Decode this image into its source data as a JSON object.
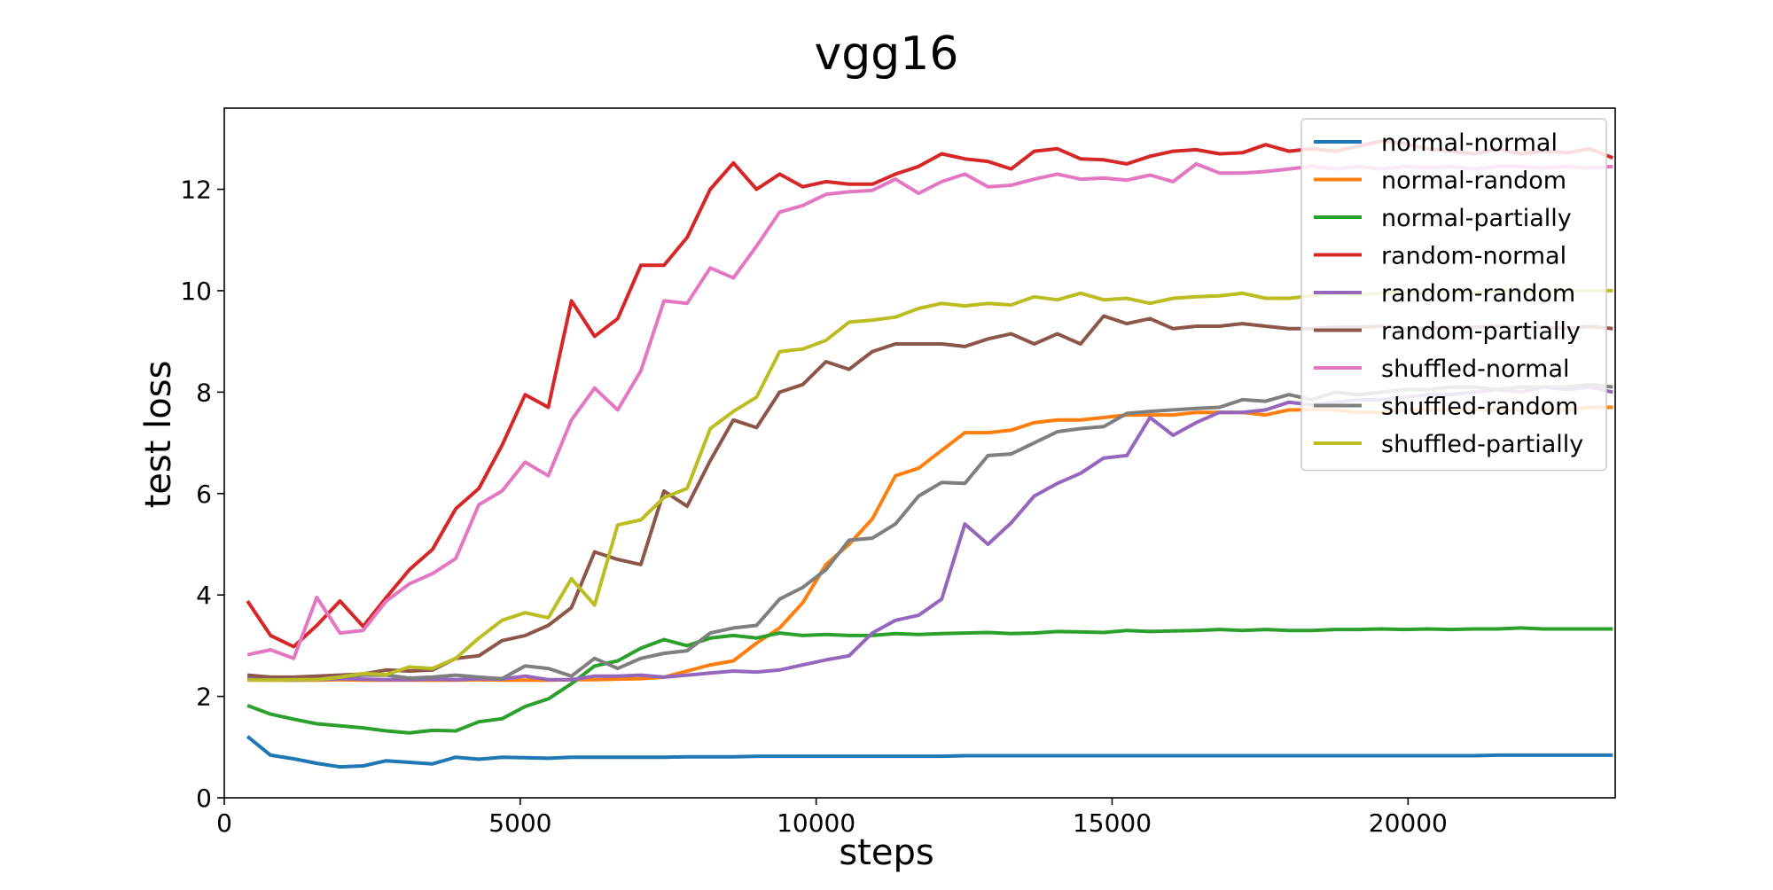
{
  "chart_data": {
    "type": "line",
    "title": "vgg16",
    "xlabel": "steps",
    "ylabel": "test loss",
    "xlim": [
      0,
      23500
    ],
    "ylim": [
      0,
      13.6
    ],
    "xticks": [
      0,
      5000,
      10000,
      15000,
      20000
    ],
    "xtick_labels": [
      "0",
      "5000",
      "10000",
      "15000",
      "20000"
    ],
    "yticks": [
      0,
      2,
      4,
      6,
      8,
      10,
      12
    ],
    "ytick_labels": [
      "0",
      "2",
      "4",
      "6",
      "8",
      "10",
      "12"
    ],
    "grid": false,
    "legend_position": "top-right",
    "colors": {
      "normal-normal": "#1f77b4",
      "normal-random": "#ff7f0e",
      "normal-partially": "#2ca02c",
      "random-normal": "#d62728",
      "random-random": "#9467bd",
      "random-partially": "#8c564b",
      "shuffled-normal": "#e377c2",
      "shuffled-random": "#7f7f7f",
      "shuffled-partially": "#bcbd22"
    },
    "x": [
      391,
      782,
      1173,
      1564,
      1955,
      2346,
      2737,
      3128,
      3519,
      3910,
      4301,
      4692,
      5083,
      5474,
      5865,
      6256,
      6647,
      7038,
      7429,
      7820,
      8211,
      8602,
      8993,
      9384,
      9775,
      10166,
      10557,
      10948,
      11339,
      11730,
      12121,
      12512,
      12903,
      13294,
      13685,
      14076,
      14467,
      14858,
      15249,
      15640,
      16031,
      16422,
      16813,
      17204,
      17595,
      17986,
      18377,
      18768,
      19159,
      19550,
      19941,
      20332,
      20723,
      21114,
      21505,
      21896,
      22287,
      22678,
      23069,
      23460
    ],
    "series": [
      {
        "name": "normal-normal",
        "values": [
          1.21,
          0.84,
          0.77,
          0.68,
          0.61,
          0.63,
          0.73,
          0.7,
          0.67,
          0.8,
          0.76,
          0.8,
          0.79,
          0.78,
          0.8,
          0.8,
          0.8,
          0.8,
          0.8,
          0.81,
          0.81,
          0.81,
          0.82,
          0.82,
          0.82,
          0.82,
          0.82,
          0.82,
          0.82,
          0.82,
          0.82,
          0.83,
          0.83,
          0.83,
          0.83,
          0.83,
          0.83,
          0.83,
          0.83,
          0.83,
          0.83,
          0.83,
          0.83,
          0.83,
          0.83,
          0.83,
          0.83,
          0.83,
          0.83,
          0.83,
          0.83,
          0.83,
          0.83,
          0.83,
          0.84,
          0.84,
          0.84,
          0.84,
          0.84,
          0.84
        ]
      },
      {
        "name": "normal-random",
        "values": [
          2.33,
          2.32,
          2.32,
          2.32,
          2.33,
          2.32,
          2.32,
          2.32,
          2.32,
          2.32,
          2.33,
          2.32,
          2.32,
          2.32,
          2.33,
          2.33,
          2.34,
          2.35,
          2.38,
          2.5,
          2.62,
          2.7,
          3.05,
          3.35,
          3.85,
          4.6,
          5.0,
          5.5,
          6.35,
          6.5,
          6.85,
          7.2,
          7.2,
          7.25,
          7.4,
          7.45,
          7.45,
          7.5,
          7.55,
          7.55,
          7.55,
          7.6,
          7.6,
          7.6,
          7.55,
          7.65,
          7.65,
          7.65,
          7.6,
          7.6,
          7.65,
          7.65,
          7.65,
          7.65,
          7.65,
          7.65,
          7.65,
          7.65,
          7.7,
          7.7
        ]
      },
      {
        "name": "normal-partially",
        "values": [
          1.82,
          1.65,
          1.55,
          1.46,
          1.42,
          1.38,
          1.32,
          1.28,
          1.33,
          1.32,
          1.5,
          1.56,
          1.8,
          1.95,
          2.25,
          2.6,
          2.7,
          2.95,
          3.12,
          3.0,
          3.15,
          3.2,
          3.15,
          3.25,
          3.2,
          3.22,
          3.2,
          3.2,
          3.24,
          3.22,
          3.24,
          3.25,
          3.26,
          3.24,
          3.25,
          3.28,
          3.27,
          3.26,
          3.3,
          3.28,
          3.29,
          3.3,
          3.32,
          3.3,
          3.32,
          3.3,
          3.3,
          3.32,
          3.32,
          3.33,
          3.32,
          3.33,
          3.32,
          3.33,
          3.33,
          3.35,
          3.33,
          3.33,
          3.33,
          3.33
        ]
      },
      {
        "name": "random-normal",
        "values": [
          3.88,
          3.2,
          2.98,
          3.4,
          3.88,
          3.38,
          3.95,
          4.5,
          4.9,
          5.7,
          6.1,
          6.95,
          7.95,
          7.7,
          9.8,
          9.1,
          9.45,
          10.5,
          10.5,
          11.05,
          12.0,
          12.52,
          12.0,
          12.3,
          12.05,
          12.15,
          12.1,
          12.1,
          12.3,
          12.45,
          12.7,
          12.6,
          12.55,
          12.4,
          12.75,
          12.8,
          12.6,
          12.58,
          12.5,
          12.65,
          12.75,
          12.78,
          12.7,
          12.72,
          12.88,
          12.75,
          12.8,
          12.75,
          12.85,
          12.95,
          12.9,
          12.8,
          12.75,
          12.7,
          12.8,
          12.7,
          12.75,
          12.72,
          12.8,
          12.62
        ]
      },
      {
        "name": "random-random",
        "values": [
          2.35,
          2.34,
          2.33,
          2.33,
          2.35,
          2.34,
          2.33,
          2.33,
          2.34,
          2.33,
          2.35,
          2.34,
          2.4,
          2.33,
          2.33,
          2.4,
          2.4,
          2.42,
          2.38,
          2.42,
          2.46,
          2.5,
          2.48,
          2.52,
          2.62,
          2.72,
          2.8,
          3.25,
          3.5,
          3.6,
          3.92,
          5.4,
          5.0,
          5.42,
          5.95,
          6.2,
          6.4,
          6.7,
          6.75,
          7.5,
          7.15,
          7.4,
          7.6,
          7.6,
          7.65,
          7.8,
          7.75,
          7.8,
          7.85,
          7.85,
          7.9,
          7.95,
          7.95,
          8.0,
          8.05,
          8.0,
          8.1,
          8.05,
          8.1,
          8.0
        ]
      },
      {
        "name": "random-partially",
        "values": [
          2.42,
          2.38,
          2.38,
          2.4,
          2.42,
          2.44,
          2.52,
          2.5,
          2.52,
          2.75,
          2.8,
          3.1,
          3.2,
          3.4,
          3.75,
          4.85,
          4.7,
          4.6,
          6.05,
          5.75,
          6.65,
          7.45,
          7.3,
          8.0,
          8.15,
          8.6,
          8.45,
          8.8,
          8.95,
          8.95,
          8.95,
          8.9,
          9.05,
          9.15,
          8.95,
          9.15,
          8.95,
          9.5,
          9.35,
          9.45,
          9.25,
          9.3,
          9.3,
          9.35,
          9.3,
          9.25,
          9.25,
          9.28,
          9.28,
          9.3,
          9.25,
          9.25,
          9.28,
          9.28,
          9.3,
          9.28,
          9.28,
          9.25,
          9.3,
          9.25
        ]
      },
      {
        "name": "shuffled-normal",
        "values": [
          2.82,
          2.92,
          2.75,
          3.95,
          3.25,
          3.3,
          3.88,
          4.22,
          4.42,
          4.72,
          5.78,
          6.05,
          6.62,
          6.35,
          7.45,
          8.08,
          7.65,
          8.42,
          9.8,
          9.75,
          10.45,
          10.25,
          10.88,
          11.55,
          11.68,
          11.9,
          11.95,
          11.98,
          12.2,
          11.92,
          12.15,
          12.3,
          12.05,
          12.08,
          12.2,
          12.3,
          12.2,
          12.22,
          12.18,
          12.28,
          12.15,
          12.5,
          12.32,
          12.32,
          12.35,
          12.4,
          12.45,
          12.4,
          12.45,
          12.4,
          12.45,
          12.42,
          12.45,
          12.4,
          12.45,
          12.45,
          12.42,
          12.45,
          12.42,
          12.45
        ]
      },
      {
        "name": "shuffled-random",
        "values": [
          2.33,
          2.33,
          2.32,
          2.33,
          2.38,
          2.42,
          2.42,
          2.36,
          2.38,
          2.42,
          2.38,
          2.35,
          2.6,
          2.55,
          2.4,
          2.75,
          2.55,
          2.75,
          2.85,
          2.9,
          3.25,
          3.35,
          3.4,
          3.92,
          4.15,
          4.5,
          5.08,
          5.12,
          5.4,
          5.95,
          6.22,
          6.2,
          6.75,
          6.78,
          7.0,
          7.22,
          7.28,
          7.32,
          7.58,
          7.62,
          7.65,
          7.68,
          7.7,
          7.85,
          7.82,
          7.95,
          7.85,
          8.0,
          7.95,
          8.0,
          8.05,
          8.05,
          8.1,
          8.1,
          8.05,
          8.1,
          8.1,
          8.1,
          8.15,
          8.1
        ]
      },
      {
        "name": "shuffled-partially",
        "values": [
          2.32,
          2.32,
          2.33,
          2.33,
          2.38,
          2.45,
          2.43,
          2.58,
          2.55,
          2.75,
          3.15,
          3.5,
          3.65,
          3.55,
          4.32,
          3.8,
          5.38,
          5.48,
          5.92,
          6.1,
          7.28,
          7.62,
          7.9,
          8.8,
          8.85,
          9.02,
          9.38,
          9.42,
          9.48,
          9.65,
          9.75,
          9.7,
          9.75,
          9.72,
          9.88,
          9.82,
          9.95,
          9.82,
          9.85,
          9.75,
          9.85,
          9.88,
          9.9,
          9.95,
          9.85,
          9.85,
          9.9,
          9.95,
          9.92,
          9.95,
          9.98,
          9.95,
          9.98,
          9.95,
          10.0,
          9.98,
          9.98,
          10.0,
          10.0,
          10.0
        ]
      }
    ]
  }
}
